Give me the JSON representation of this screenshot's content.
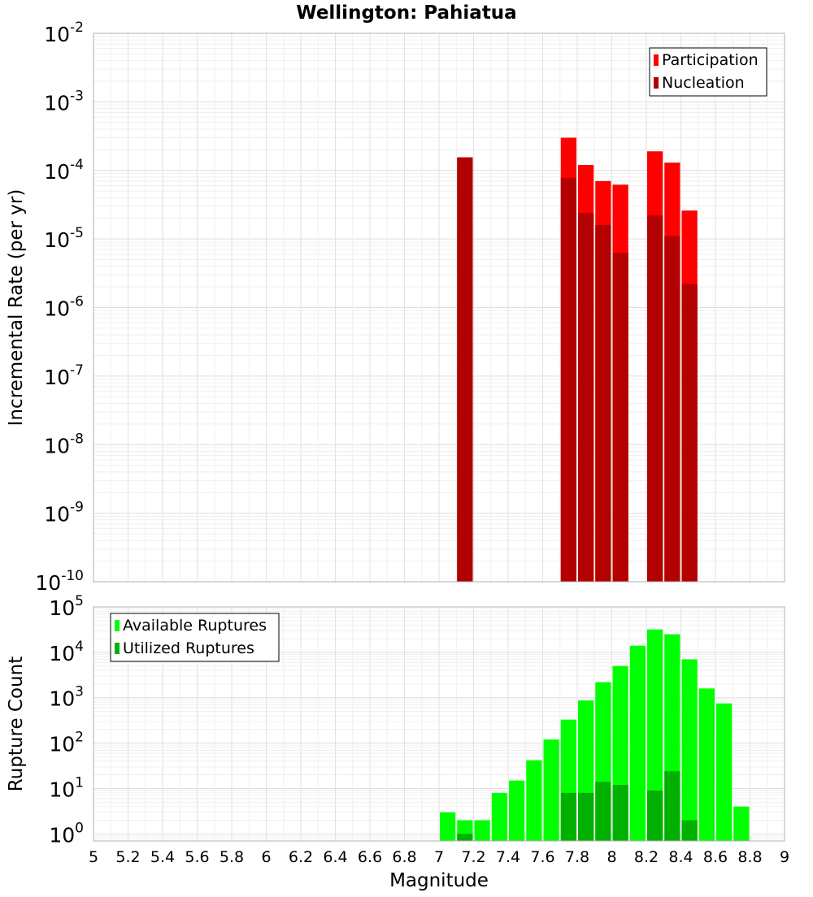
{
  "title": "Wellington: Pahiatua",
  "xlabel": "Magnitude",
  "x_ticks": [
    "5",
    "5.2",
    "5.4",
    "5.6",
    "5.8",
    "6",
    "6.2",
    "6.4",
    "6.6",
    "6.8",
    "7",
    "7.2",
    "7.4",
    "7.6",
    "7.8",
    "8",
    "8.2",
    "8.4",
    "8.6",
    "8.8",
    "9"
  ],
  "chart_data": [
    {
      "type": "bar",
      "title": "Wellington: Pahiatua",
      "ylabel": "Incremental Rate (per yr)",
      "yscale": "log",
      "ylim": [
        1e-10,
        0.01
      ],
      "xlim": [
        5,
        9
      ],
      "bin_width": 0.1,
      "legend_placement": "top-right",
      "grid": true,
      "y_tick_exponents": [
        -10,
        -9,
        -8,
        -7,
        -6,
        -5,
        -4,
        -3,
        -2
      ],
      "series": [
        {
          "name": "Participation",
          "color": "#ff0000",
          "x": [
            7.15,
            7.75,
            7.85,
            7.95,
            8.05,
            8.25,
            8.35,
            8.45
          ],
          "values": [
            0.000155,
            0.0003,
            0.00012,
            7e-05,
            6.2e-05,
            0.00019,
            0.00013,
            2.6e-05
          ]
        },
        {
          "name": "Nucleation",
          "color": "#b30000",
          "x": [
            7.15,
            7.75,
            7.85,
            7.95,
            8.05,
            8.25,
            8.35,
            8.45
          ],
          "values": [
            0.000155,
            7.8e-05,
            2.4e-05,
            1.6e-05,
            6.3e-06,
            2.2e-05,
            1.1e-05,
            2.2e-06
          ]
        }
      ]
    },
    {
      "type": "bar",
      "ylabel": "Rupture Count",
      "xlabel": "Magnitude",
      "yscale": "log",
      "ylim": [
        0.7,
        100000.0
      ],
      "xlim": [
        5,
        9
      ],
      "bin_width": 0.1,
      "legend_placement": "top-left",
      "grid": true,
      "y_tick_exponents": [
        0,
        1,
        2,
        3,
        4,
        5
      ],
      "series": [
        {
          "name": "Available Ruptures",
          "color": "#00ff00",
          "x": [
            7.05,
            7.15,
            7.25,
            7.35,
            7.45,
            7.55,
            7.65,
            7.75,
            7.85,
            7.95,
            8.05,
            8.15,
            8.25,
            8.35,
            8.45,
            8.55,
            8.65,
            8.75
          ],
          "values": [
            3,
            2,
            2,
            8,
            15,
            42,
            120,
            330,
            870,
            2200,
            5000,
            14000,
            32000,
            25000,
            7000,
            1600,
            750,
            4
          ]
        },
        {
          "name": "Utilized Ruptures",
          "color": "#00b000",
          "x": [
            7.15,
            7.75,
            7.85,
            7.95,
            8.05,
            8.25,
            8.35,
            8.45
          ],
          "values": [
            1,
            8,
            8,
            14,
            12,
            9,
            24,
            2
          ]
        }
      ]
    }
  ]
}
